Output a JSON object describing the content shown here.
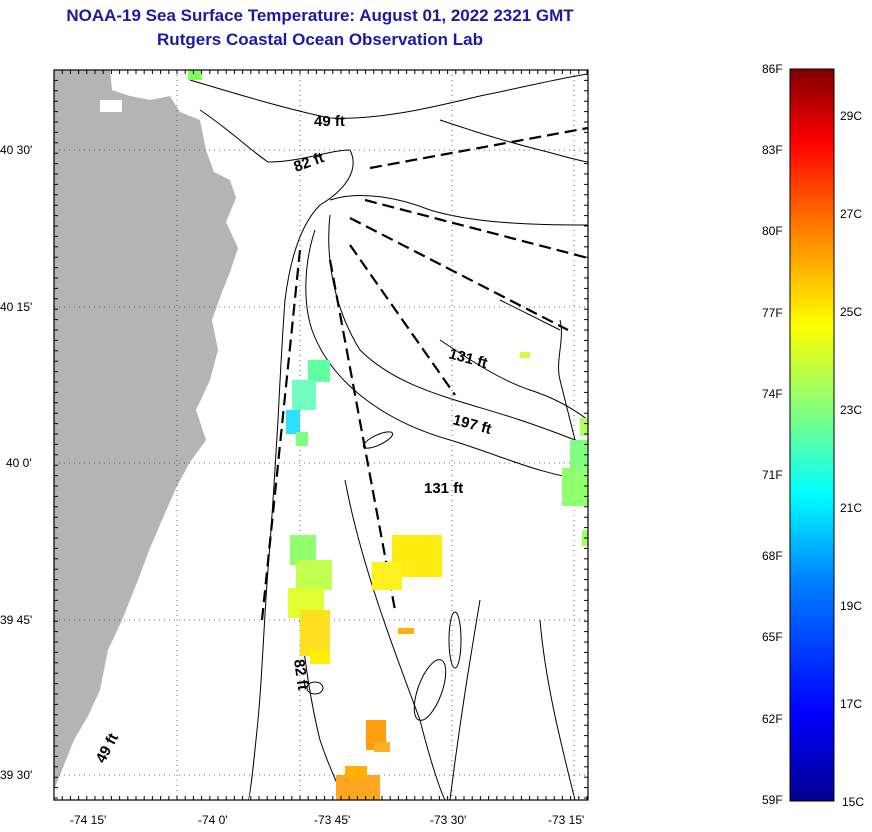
{
  "header": {
    "title": "NOAA-19 Sea Surface Temperature:  August 01, 2022 2321 GMT",
    "subtitle": "Rutgers Coastal Ocean Observation Lab"
  },
  "map": {
    "lat_ticks": [
      "40 30'",
      "40 15'",
      "40 0'",
      "39 45'",
      "39 30'"
    ],
    "lon_ticks": [
      "-74 15'",
      "-74 0'",
      "-73 45'",
      "-73 30'",
      "-73 15'"
    ],
    "depth_labels": [
      "49 ft",
      "82 ft",
      "131 ft",
      "197 ft",
      "131 ft",
      "82 ft",
      "49 ft"
    ],
    "land_color": "#b4b4b4"
  },
  "colorbar": {
    "fahrenheit": [
      "86F",
      "83F",
      "80F",
      "77F",
      "74F",
      "71F",
      "68F",
      "65F",
      "62F",
      "59F"
    ],
    "celsius": [
      "29C",
      "27C",
      "25C",
      "23C",
      "21C",
      "19C",
      "17C",
      "15C"
    ],
    "colors": [
      "#00008f",
      "#0000ff",
      "#0080ff",
      "#00ffff",
      "#80ff80",
      "#ffff00",
      "#ff8000",
      "#ff0000",
      "#800000"
    ]
  }
}
